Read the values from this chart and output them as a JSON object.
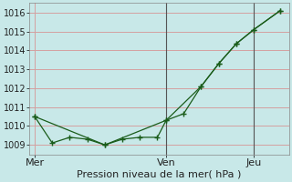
{
  "title": "Pression niveau de la mer( hPa )",
  "background_color": "#c8e8e8",
  "grid_color": "#d4a0a0",
  "line_color": "#1a5c1a",
  "vline_color": "#555555",
  "ylim": [
    1008.5,
    1016.5
  ],
  "yticks": [
    1009,
    1010,
    1011,
    1012,
    1013,
    1014,
    1015,
    1016
  ],
  "xlim": [
    -0.3,
    14.5
  ],
  "day_labels": [
    "Mer",
    "Ven",
    "Jeu"
  ],
  "day_positions": [
    0.0,
    7.5,
    12.5
  ],
  "vline_positions": [
    7.5,
    12.5
  ],
  "line1_x": [
    0,
    1,
    2,
    3,
    4,
    5,
    6,
    7,
    7.5,
    8.5,
    9.5,
    10.5,
    11.5,
    12.5,
    14
  ],
  "line1_y": [
    1010.5,
    1009.1,
    1009.4,
    1009.3,
    1009.0,
    1009.3,
    1009.4,
    1009.4,
    1010.3,
    1010.65,
    1012.1,
    1013.3,
    1014.35,
    1015.1,
    1016.1
  ],
  "line2_x": [
    0,
    4,
    7.5,
    9.5,
    10.5,
    11.5,
    12.5,
    14
  ],
  "line2_y": [
    1010.5,
    1009.0,
    1010.3,
    1012.1,
    1013.3,
    1014.35,
    1015.1,
    1016.1
  ],
  "xlabel_fontsize": 8,
  "tick_fontsize": 7
}
